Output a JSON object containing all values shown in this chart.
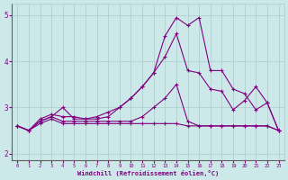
{
  "x": [
    0,
    1,
    2,
    3,
    4,
    5,
    6,
    7,
    8,
    9,
    10,
    11,
    12,
    13,
    14,
    15,
    16,
    17,
    18,
    19,
    20,
    21,
    22,
    23
  ],
  "line1": [
    2.6,
    2.5,
    2.65,
    2.75,
    2.65,
    2.65,
    2.65,
    2.65,
    2.65,
    2.65,
    2.65,
    2.65,
    2.65,
    2.65,
    2.65,
    2.6,
    2.6,
    2.6,
    2.6,
    2.6,
    2.6,
    2.6,
    2.6,
    2.5
  ],
  "line2": [
    2.6,
    2.5,
    2.7,
    2.8,
    3.0,
    2.75,
    2.75,
    2.8,
    2.9,
    3.0,
    3.2,
    3.45,
    3.75,
    4.1,
    4.6,
    3.8,
    3.75,
    3.4,
    3.35,
    2.95,
    3.15,
    3.45,
    3.1,
    2.5
  ],
  "line3": [
    2.6,
    2.5,
    2.75,
    2.85,
    2.8,
    2.8,
    2.75,
    2.75,
    2.8,
    3.0,
    3.2,
    3.45,
    3.75,
    4.55,
    4.95,
    4.78,
    4.95,
    3.8,
    3.8,
    3.4,
    3.3,
    2.95,
    3.1,
    2.5
  ],
  "line4": [
    2.6,
    2.5,
    2.7,
    2.8,
    2.7,
    2.7,
    2.7,
    2.7,
    2.7,
    2.7,
    2.7,
    2.8,
    3.0,
    3.2,
    3.5,
    2.7,
    2.6,
    2.6,
    2.6,
    2.6,
    2.6,
    2.6,
    2.6,
    2.5
  ],
  "line_color": "#800080",
  "bg_color": "#cce8e8",
  "grid_color": "#aacccc",
  "axis_color": "#800080",
  "xlabel": "Windchill (Refroidissement éolien,°C)",
  "ylim": [
    1.85,
    5.25
  ],
  "xlim": [
    -0.5,
    23.5
  ],
  "yticks": [
    2,
    3,
    4,
    5
  ],
  "xticks": [
    0,
    1,
    2,
    3,
    4,
    5,
    6,
    7,
    8,
    9,
    10,
    11,
    12,
    13,
    14,
    15,
    16,
    17,
    18,
    19,
    20,
    21,
    22,
    23
  ]
}
